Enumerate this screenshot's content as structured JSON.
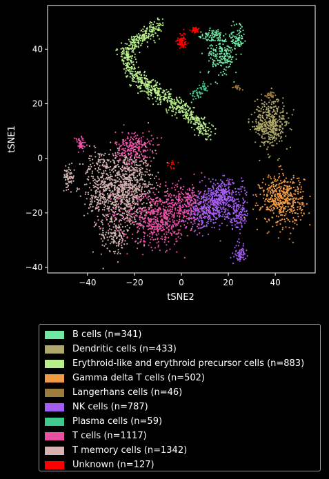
{
  "chart_data": {
    "type": "scatter",
    "xlabel": "tSNE2",
    "ylabel": "tSNE1",
    "xlim": [
      -57,
      57
    ],
    "ylim": [
      -42,
      56
    ],
    "x_ticks": [
      -40,
      -20,
      0,
      20,
      40
    ],
    "y_ticks": [
      -40,
      -20,
      0,
      20,
      40
    ],
    "grid": false,
    "legend_position": "below",
    "series": [
      {
        "name": "B cells (n=341)",
        "color": "#6ee8a3",
        "count": 341,
        "clusters": [
          {
            "cx": 17,
            "cy": 38,
            "sx": 3.2,
            "sy": 3.5,
            "w": 0.55
          },
          {
            "cx": 24,
            "cy": 44,
            "sx": 1.4,
            "sy": 2.0,
            "w": 0.25
          },
          {
            "cx": 13,
            "cy": 45,
            "sx": 2.5,
            "sy": 1.0,
            "w": 0.2
          }
        ]
      },
      {
        "name": "Dendritic cells (n=433)",
        "color": "#b0a869",
        "count": 433,
        "clusters": [
          {
            "cx": 38,
            "cy": 13,
            "sx": 3.5,
            "sy": 4.5,
            "w": 0.9
          },
          {
            "cx": 33,
            "cy": 12,
            "sx": 1.5,
            "sy": 1.0,
            "w": 0.1
          }
        ]
      },
      {
        "name": "Erythroid-like and erythroid precursor cells (n=883)",
        "color": "#b8ef8a",
        "count": 883,
        "path": [
          [
            -9,
            49
          ],
          [
            -14,
            46
          ],
          [
            -18,
            44
          ],
          [
            -24,
            39
          ],
          [
            -21,
            31
          ],
          [
            -15,
            27
          ],
          [
            -8,
            23
          ],
          [
            0,
            18
          ],
          [
            6,
            14
          ],
          [
            11,
            9
          ]
        ],
        "spread": 1.5
      },
      {
        "name": "Gamma delta T cells (n=502)",
        "color": "#ef9a45",
        "count": 502,
        "clusters": [
          {
            "cx": 43,
            "cy": -15,
            "sx": 4.5,
            "sy": 4.5,
            "w": 1.0
          }
        ]
      },
      {
        "name": "Langerhans cells (n=46)",
        "color": "#9a7c3f",
        "count": 46,
        "clusters": [
          {
            "cx": 38,
            "cy": 23,
            "sx": 0.8,
            "sy": 1.0,
            "w": 0.6
          },
          {
            "cx": 24,
            "cy": 26,
            "sx": 1.0,
            "sy": 0.5,
            "w": 0.4
          }
        ]
      },
      {
        "name": "NK cells (n=787)",
        "color": "#a35df0",
        "count": 787,
        "clusters": [
          {
            "cx": 17,
            "cy": -14,
            "sx": 4.5,
            "sy": 3.0,
            "w": 0.45
          },
          {
            "cx": 10,
            "cy": -20,
            "sx": 4.0,
            "sy": 3.0,
            "w": 0.3
          },
          {
            "cx": 24,
            "cy": -21,
            "sx": 2.5,
            "sy": 2.5,
            "w": 0.17
          },
          {
            "cx": 25,
            "cy": -35,
            "sx": 1.2,
            "sy": 1.5,
            "w": 0.08
          }
        ]
      },
      {
        "name": "Plasma cells (n=59)",
        "color": "#3fc98c",
        "count": 59,
        "clusters": [
          {
            "cx": 7,
            "cy": 24,
            "sx": 1.5,
            "sy": 1.0,
            "w": 0.6
          },
          {
            "cx": 10,
            "cy": 26,
            "sx": 1.0,
            "sy": 0.8,
            "w": 0.4
          }
        ]
      },
      {
        "name": "T cells (n=1117)",
        "color": "#e84fa3",
        "count": 1117,
        "clusters": [
          {
            "cx": -10,
            "cy": -22,
            "sx": 5.5,
            "sy": 5.0,
            "w": 0.45
          },
          {
            "cx": -20,
            "cy": 4,
            "sx": 4.0,
            "sy": 3.0,
            "w": 0.2
          },
          {
            "cx": 2,
            "cy": -17,
            "sx": 5.0,
            "sy": 4.0,
            "w": 0.25
          },
          {
            "cx": -43,
            "cy": 5,
            "sx": 1.2,
            "sy": 1.5,
            "w": 0.05
          },
          {
            "cx": -25,
            "cy": -20,
            "sx": 5.0,
            "sy": 6.0,
            "w": 0.05
          }
        ]
      },
      {
        "name": "T memory cells (n=1342)",
        "color": "#d3b3b1",
        "count": 1342,
        "clusters": [
          {
            "cx": -24,
            "cy": -11,
            "sx": 6.0,
            "sy": 7.0,
            "w": 0.7
          },
          {
            "cx": -35,
            "cy": -10,
            "sx": 3.5,
            "sy": 7.0,
            "w": 0.15
          },
          {
            "cx": -28,
            "cy": -28,
            "sx": 3.0,
            "sy": 3.0,
            "w": 0.1
          },
          {
            "cx": -48,
            "cy": -7,
            "sx": 1.2,
            "sy": 2.0,
            "w": 0.05
          }
        ]
      },
      {
        "name": "Unknown (n=127)",
        "color": "#ff0000",
        "count": 127,
        "clusters": [
          {
            "cx": 0,
            "cy": 43,
            "sx": 1.0,
            "sy": 1.2,
            "w": 0.6
          },
          {
            "cx": 6,
            "cy": 47,
            "sx": 0.7,
            "sy": 0.5,
            "w": 0.3
          },
          {
            "cx": -4,
            "cy": -2,
            "sx": 1.0,
            "sy": 1.0,
            "w": 0.1
          }
        ]
      }
    ]
  }
}
